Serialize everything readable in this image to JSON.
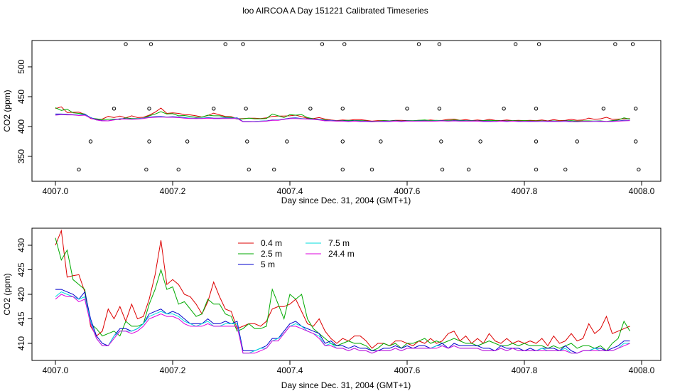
{
  "title": "loo AIRCOA A  Day 151221  Calibrated Timeseries",
  "chart_data": [
    {
      "type": "line",
      "panel": "top",
      "xlabel": "Day since Dec. 31, 2004 (GMT+1)",
      "ylabel": "CO2 (ppm)",
      "xlim": [
        4007.0,
        4008.0
      ],
      "ylim": [
        325,
        545
      ],
      "xticks": [
        4007.0,
        4007.2,
        4007.4,
        4007.6,
        4007.8,
        4008.0
      ],
      "xtick_labels": [
        "4007.0",
        "4007.2",
        "4007.4",
        "4007.6",
        "4007.8",
        "4008.0"
      ],
      "yticks": [
        350,
        400,
        450,
        500
      ],
      "ytick_labels": [
        "350",
        "400",
        "450",
        "500"
      ],
      "grid": false,
      "series": [
        {
          "key": "s04",
          "color": "#dd0000"
        },
        {
          "key": "s25",
          "color": "#00aa00"
        },
        {
          "key": "s5",
          "color": "#0000cc"
        },
        {
          "key": "s75",
          "color": "#00dddd"
        },
        {
          "key": "s244",
          "color": "#dd00dd"
        }
      ],
      "flag_points": {
        "x": [
          4007.04,
          4007.06,
          4007.1,
          4007.12,
          4007.155,
          4007.16,
          4007.16,
          4007.163,
          4007.21,
          4007.225,
          4007.27,
          4007.29,
          4007.32,
          4007.325,
          4007.327,
          4007.33,
          4007.373,
          4007.395,
          4007.435,
          4007.455,
          4007.49,
          4007.49,
          4007.49,
          4007.493,
          4007.54,
          4007.555,
          4007.6,
          4007.62,
          4007.655,
          4007.655,
          4007.658,
          4007.66,
          4007.705,
          4007.725,
          4007.765,
          4007.785,
          4007.82,
          4007.82,
          4007.82,
          4007.825,
          4007.87,
          4007.89,
          4007.935,
          4007.955,
          4007.985,
          4007.99,
          4007.99,
          4007.995
        ],
        "y": [
          328,
          375,
          430,
          538,
          328,
          375,
          430,
          538,
          328,
          375,
          430,
          538,
          538,
          430,
          375,
          328,
          328,
          375,
          430,
          538,
          328,
          375,
          430,
          538,
          328,
          375,
          430,
          538,
          538,
          430,
          375,
          328,
          328,
          375,
          430,
          538,
          328,
          375,
          430,
          538,
          328,
          375,
          430,
          538,
          538,
          430,
          375,
          328
        ]
      }
    },
    {
      "type": "line",
      "panel": "bottom",
      "xlabel": "Day since Dec. 31, 2004 (GMT+1)",
      "ylabel": "CO2 (ppm)",
      "xlim": [
        4007.0,
        4008.0
      ],
      "ylim": [
        407.3,
        432.8
      ],
      "xticks": [
        4007.0,
        4007.2,
        4007.4,
        4007.6,
        4007.8,
        4008.0
      ],
      "xtick_labels": [
        "4007.0",
        "4007.2",
        "4007.4",
        "4007.6",
        "4007.8",
        "4008.0"
      ],
      "yticks": [
        410,
        415,
        420,
        425,
        430
      ],
      "ytick_labels": [
        "410",
        "415",
        "420",
        "425",
        "430"
      ],
      "grid": false,
      "legend_position": "top-center",
      "x": [
        4007.0,
        4007.01,
        4007.02,
        4007.03,
        4007.04,
        4007.05,
        4007.06,
        4007.07,
        4007.08,
        4007.09,
        4007.1,
        4007.11,
        4007.12,
        4007.13,
        4007.14,
        4007.15,
        4007.16,
        4007.17,
        4007.18,
        4007.19,
        4007.2,
        4007.21,
        4007.22,
        4007.23,
        4007.24,
        4007.25,
        4007.26,
        4007.27,
        4007.28,
        4007.29,
        4007.3,
        4007.31,
        4007.32,
        4007.33,
        4007.34,
        4007.35,
        4007.36,
        4007.37,
        4007.38,
        4007.39,
        4007.4,
        4007.41,
        4007.42,
        4007.43,
        4007.44,
        4007.45,
        4007.46,
        4007.47,
        4007.48,
        4007.49,
        4007.5,
        4007.51,
        4007.52,
        4007.53,
        4007.54,
        4007.55,
        4007.56,
        4007.57,
        4007.58,
        4007.59,
        4007.6,
        4007.61,
        4007.62,
        4007.63,
        4007.64,
        4007.65,
        4007.66,
        4007.67,
        4007.68,
        4007.69,
        4007.7,
        4007.71,
        4007.72,
        4007.73,
        4007.74,
        4007.75,
        4007.76,
        4007.77,
        4007.78,
        4007.79,
        4007.8,
        4007.81,
        4007.82,
        4007.83,
        4007.84,
        4007.85,
        4007.86,
        4007.87,
        4007.88,
        4007.89,
        4007.9,
        4007.91,
        4007.92,
        4007.93,
        4007.94,
        4007.95,
        4007.96,
        4007.97,
        4007.98
      ],
      "series": [
        {
          "key": "s04",
          "name": "0.4 m",
          "color": "#dd0000",
          "values": [
            430.0,
            433.0,
            423.5,
            423.8,
            424.0,
            420.5,
            413.5,
            411.5,
            412.5,
            417.0,
            415.0,
            417.5,
            414.5,
            418.0,
            415.0,
            415.5,
            419.0,
            424.0,
            431.0,
            422.0,
            423.0,
            422.0,
            420.0,
            419.5,
            418.0,
            416.0,
            418.5,
            422.5,
            419.5,
            417.0,
            416.5,
            413.0,
            413.5,
            414.0,
            414.0,
            413.5,
            414.5,
            417.0,
            417.5,
            417.5,
            418.0,
            419.0,
            416.5,
            414.0,
            413.5,
            415.0,
            412.5,
            411.0,
            410.0,
            411.0,
            410.5,
            411.5,
            411.5,
            410.5,
            409.0,
            410.0,
            410.0,
            409.5,
            410.5,
            410.5,
            410.0,
            409.5,
            410.5,
            410.0,
            411.0,
            410.0,
            410.5,
            412.0,
            412.5,
            410.5,
            411.5,
            410.0,
            411.0,
            410.0,
            412.0,
            410.5,
            410.0,
            411.0,
            410.0,
            410.5,
            410.0,
            410.5,
            410.0,
            411.0,
            409.5,
            411.5,
            410.0,
            410.5,
            412.0,
            410.5,
            411.0,
            414.0,
            412.0,
            413.0,
            415.5,
            412.0,
            412.5,
            413.0,
            413.5
          ]
        },
        {
          "key": "s25",
          "name": "2.5 m",
          "color": "#00aa00",
          "values": [
            431.5,
            427.0,
            429.0,
            423.0,
            422.0,
            421.0,
            414.0,
            413.0,
            411.5,
            412.0,
            412.5,
            411.5,
            414.5,
            413.5,
            413.5,
            414.0,
            418.0,
            421.0,
            425.0,
            421.0,
            421.5,
            418.0,
            418.5,
            417.0,
            415.5,
            416.0,
            419.0,
            418.0,
            418.0,
            416.0,
            415.5,
            412.5,
            413.0,
            414.0,
            413.0,
            413.0,
            413.5,
            421.0,
            418.0,
            415.0,
            420.0,
            419.0,
            420.0,
            415.0,
            413.0,
            412.0,
            411.0,
            410.0,
            409.5,
            410.0,
            410.5,
            410.0,
            410.0,
            409.5,
            408.5,
            409.0,
            410.0,
            409.5,
            410.0,
            409.0,
            410.0,
            410.0,
            410.5,
            411.0,
            410.0,
            410.5,
            410.0,
            410.5,
            411.0,
            410.5,
            410.0,
            410.0,
            409.5,
            410.0,
            410.5,
            410.0,
            409.5,
            409.5,
            410.0,
            409.5,
            410.0,
            409.5,
            409.5,
            409.5,
            409.0,
            409.5,
            409.0,
            409.5,
            410.0,
            409.0,
            409.5,
            409.5,
            409.0,
            409.5,
            408.5,
            410.0,
            411.0,
            414.5,
            412.5
          ]
        },
        {
          "key": "s5",
          "name": "5 m",
          "color": "#0000cc",
          "values": [
            421.0,
            421.0,
            420.5,
            420.0,
            419.0,
            420.5,
            415.0,
            411.5,
            410.0,
            409.5,
            411.5,
            413.0,
            413.0,
            412.5,
            413.0,
            414.0,
            416.0,
            416.5,
            417.0,
            416.0,
            416.5,
            416.0,
            415.0,
            414.0,
            414.0,
            414.0,
            415.0,
            414.0,
            414.0,
            414.5,
            414.0,
            414.5,
            408.5,
            408.5,
            408.5,
            409.0,
            409.5,
            411.0,
            411.0,
            412.5,
            414.0,
            414.5,
            413.5,
            413.0,
            412.5,
            412.0,
            410.0,
            410.5,
            409.5,
            409.5,
            409.0,
            409.5,
            409.0,
            409.0,
            408.5,
            408.5,
            409.0,
            409.0,
            409.5,
            409.0,
            409.5,
            409.0,
            409.5,
            409.5,
            409.0,
            409.5,
            410.0,
            409.0,
            410.0,
            409.5,
            409.5,
            409.5,
            409.5,
            409.0,
            409.0,
            408.5,
            409.5,
            409.0,
            409.0,
            409.0,
            408.5,
            409.0,
            408.5,
            409.0,
            409.0,
            409.0,
            408.5,
            409.5,
            408.5,
            408.0,
            408.5,
            408.5,
            409.0,
            409.0,
            408.5,
            409.0,
            409.5,
            410.5,
            410.5
          ]
        },
        {
          "key": "s75",
          "name": "7.5 m",
          "color": "#00dddd",
          "values": [
            419.5,
            420.5,
            420.0,
            419.5,
            419.0,
            419.5,
            414.5,
            411.0,
            409.5,
            409.5,
            411.5,
            412.5,
            412.5,
            412.5,
            413.0,
            414.0,
            415.5,
            416.0,
            416.5,
            416.0,
            416.0,
            415.5,
            414.5,
            414.0,
            413.5,
            414.0,
            414.5,
            413.5,
            413.5,
            414.0,
            414.0,
            414.0,
            408.0,
            408.0,
            408.5,
            409.0,
            409.0,
            410.5,
            411.0,
            412.0,
            413.5,
            414.0,
            413.5,
            412.5,
            412.0,
            411.5,
            409.5,
            410.0,
            409.0,
            409.0,
            408.5,
            409.0,
            408.5,
            408.5,
            408.0,
            408.5,
            408.5,
            408.5,
            409.0,
            408.5,
            409.0,
            409.0,
            409.0,
            409.0,
            409.0,
            409.5,
            409.5,
            409.0,
            409.5,
            409.0,
            409.0,
            409.0,
            409.0,
            408.5,
            408.5,
            408.5,
            409.0,
            408.5,
            409.0,
            408.5,
            408.5,
            408.5,
            408.5,
            409.0,
            408.5,
            408.5,
            408.5,
            409.0,
            408.0,
            408.0,
            408.5,
            408.5,
            409.0,
            408.5,
            408.5,
            408.5,
            409.0,
            410.0,
            410.0
          ]
        },
        {
          "key": "s244",
          "name": "24.4 m",
          "color": "#dd00dd",
          "values": [
            419.0,
            420.0,
            419.5,
            419.5,
            418.5,
            419.0,
            414.0,
            411.0,
            409.5,
            409.5,
            411.0,
            412.5,
            412.5,
            412.0,
            412.5,
            413.5,
            415.0,
            415.5,
            416.0,
            415.5,
            415.5,
            415.0,
            414.0,
            413.5,
            413.5,
            413.5,
            414.0,
            413.5,
            413.5,
            413.5,
            413.5,
            413.5,
            408.0,
            408.0,
            408.0,
            408.5,
            409.0,
            410.5,
            410.5,
            412.0,
            413.5,
            413.5,
            413.0,
            412.5,
            412.0,
            411.0,
            409.5,
            409.5,
            409.0,
            409.0,
            408.5,
            409.0,
            408.5,
            408.5,
            408.0,
            408.5,
            408.5,
            408.5,
            409.0,
            408.5,
            409.0,
            409.0,
            409.0,
            409.0,
            409.0,
            409.0,
            409.5,
            409.0,
            409.5,
            409.0,
            409.0,
            409.0,
            409.0,
            408.5,
            408.5,
            408.5,
            409.0,
            408.5,
            409.0,
            408.5,
            408.5,
            408.5,
            408.5,
            408.5,
            408.5,
            408.5,
            408.5,
            408.5,
            408.0,
            408.0,
            408.5,
            408.5,
            408.5,
            408.5,
            408.5,
            408.5,
            409.0,
            409.5,
            410.0
          ]
        }
      ]
    }
  ]
}
